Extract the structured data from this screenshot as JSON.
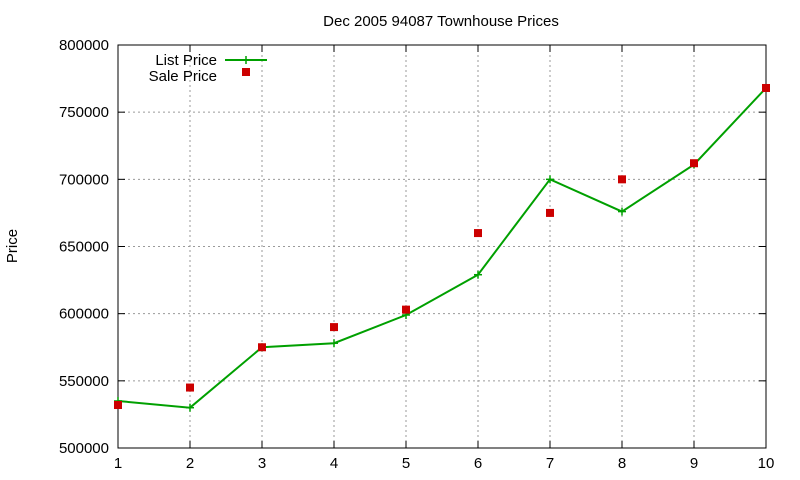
{
  "chart_data": {
    "type": "line",
    "title": "Dec 2005 94087 Townhouse Prices",
    "xlabel": "",
    "ylabel": "Price",
    "x": [
      1,
      2,
      3,
      4,
      5,
      6,
      7,
      8,
      9,
      10
    ],
    "xlim": [
      1,
      10
    ],
    "ylim": [
      500000,
      800000
    ],
    "x_ticks": [
      "1",
      "2",
      "3",
      "4",
      "5",
      "6",
      "7",
      "8",
      "9",
      "10"
    ],
    "y_ticks": [
      "500000",
      "550000",
      "600000",
      "650000",
      "700000",
      "750000",
      "800000"
    ],
    "grid": true,
    "legend_position": "top-left",
    "series": [
      {
        "name": "List Price",
        "style": "lines+points",
        "marker": "plus",
        "color": "#00a000",
        "values": [
          535000,
          530000,
          575000,
          578000,
          599000,
          629000,
          700000,
          676000,
          711000,
          768000
        ]
      },
      {
        "name": "Sale Price",
        "style": "points",
        "marker": "square",
        "color": "#cc0000",
        "values": [
          532000,
          545000,
          575000,
          590000,
          603000,
          660000,
          675000,
          700000,
          712000,
          768000
        ]
      }
    ]
  }
}
